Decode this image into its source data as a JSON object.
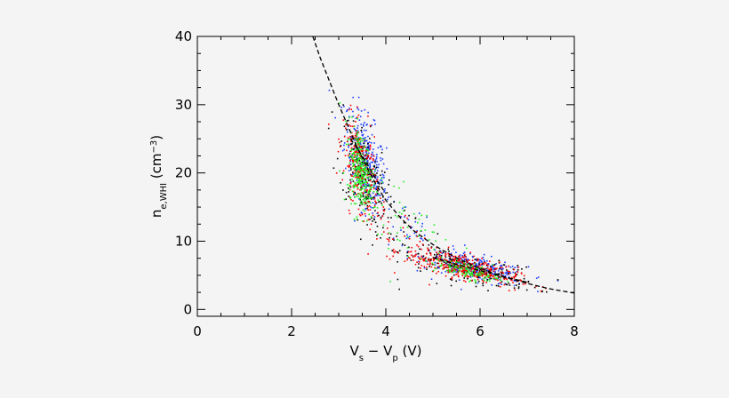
{
  "chart_data": {
    "type": "scatter",
    "title": "",
    "xlabel_parts": {
      "main1": "V",
      "sub1": "s",
      "mid": " − V",
      "sub2": "p",
      "tail": " (V)"
    },
    "ylabel_parts": {
      "main": "n",
      "sub": "e,WHI",
      "tail": "  (cm",
      "sup": "−3",
      "close": ")"
    },
    "xlim": [
      0,
      8
    ],
    "ylim": [
      -1,
      40
    ],
    "xticks": [
      0,
      2,
      4,
      6,
      8
    ],
    "yticks": [
      0,
      10,
      20,
      30,
      40
    ],
    "xticklabels": [
      "0",
      "2",
      "4",
      "6",
      "8"
    ],
    "yticklabels": [
      "0",
      "10",
      "20",
      "30",
      "40"
    ],
    "grid": false,
    "legend": "none",
    "series": [
      {
        "color": "#1f3fff",
        "clusters": [
          {
            "cx": 3.55,
            "cy": 22.0,
            "sx": 0.22,
            "sy": 3.2,
            "slope": -8.5,
            "n": 320
          },
          {
            "cx": 5.9,
            "cy": 6.2,
            "sx": 0.55,
            "sy": 0.9,
            "slope": -1.5,
            "n": 260
          },
          {
            "cx": 4.6,
            "cy": 10.5,
            "sx": 0.5,
            "sy": 2.5,
            "slope": -4.0,
            "n": 40
          }
        ]
      },
      {
        "color": "#000000",
        "clusters": [
          {
            "cx": 3.5,
            "cy": 20.0,
            "sx": 0.25,
            "sy": 3.5,
            "slope": -8.0,
            "n": 180
          },
          {
            "cx": 5.8,
            "cy": 6.0,
            "sx": 0.7,
            "sy": 1.0,
            "slope": -1.5,
            "n": 200
          },
          {
            "cx": 4.5,
            "cy": 10.0,
            "sx": 0.5,
            "sy": 2.5,
            "slope": -4.0,
            "n": 40
          }
        ]
      },
      {
        "color": "#ff0000",
        "clusters": [
          {
            "cx": 3.45,
            "cy": 21.0,
            "sx": 0.18,
            "sy": 3.0,
            "slope": -8.5,
            "n": 260
          },
          {
            "cx": 5.6,
            "cy": 6.4,
            "sx": 0.6,
            "sy": 0.9,
            "slope": -1.6,
            "n": 380
          },
          {
            "cx": 4.4,
            "cy": 10.5,
            "sx": 0.45,
            "sy": 2.5,
            "slope": -4.0,
            "n": 40
          }
        ]
      },
      {
        "color": "#22ee22",
        "clusters": [
          {
            "cx": 3.45,
            "cy": 20.5,
            "sx": 0.13,
            "sy": 2.8,
            "slope": -9.0,
            "n": 280
          },
          {
            "cx": 5.7,
            "cy": 5.8,
            "sx": 0.35,
            "sy": 0.6,
            "slope": -1.4,
            "n": 130
          },
          {
            "cx": 4.2,
            "cy": 14.0,
            "sx": 0.6,
            "sy": 3.5,
            "slope": -5.0,
            "n": 60
          }
        ]
      }
    ],
    "fit_curves": [
      {
        "style": "dashed",
        "color": "#000000",
        "x": [
          2.45,
          2.6,
          2.8,
          3.0,
          3.2,
          3.4,
          3.6,
          3.8,
          4.0,
          4.3,
          4.6,
          5.0,
          5.4,
          5.8,
          6.2,
          6.6,
          7.0,
          7.5,
          8.0
        ],
        "y": [
          40.0,
          37.0,
          33.5,
          30.0,
          26.8,
          23.6,
          20.8,
          18.2,
          16.0,
          13.5,
          11.5,
          9.5,
          7.9,
          6.6,
          5.5,
          4.6,
          3.8,
          3.0,
          2.4
        ]
      },
      {
        "style": "dashed",
        "color": "#000000",
        "x": [
          3.25,
          3.5,
          3.75,
          4.0
        ],
        "y": [
          25.0,
          22.5,
          19.5,
          17.0
        ]
      },
      {
        "style": "dashed",
        "color": "#000000",
        "x": [
          5.0,
          5.5,
          6.0,
          6.5,
          7.0
        ],
        "y": [
          7.6,
          6.6,
          5.7,
          4.8,
          4.0
        ]
      }
    ]
  }
}
